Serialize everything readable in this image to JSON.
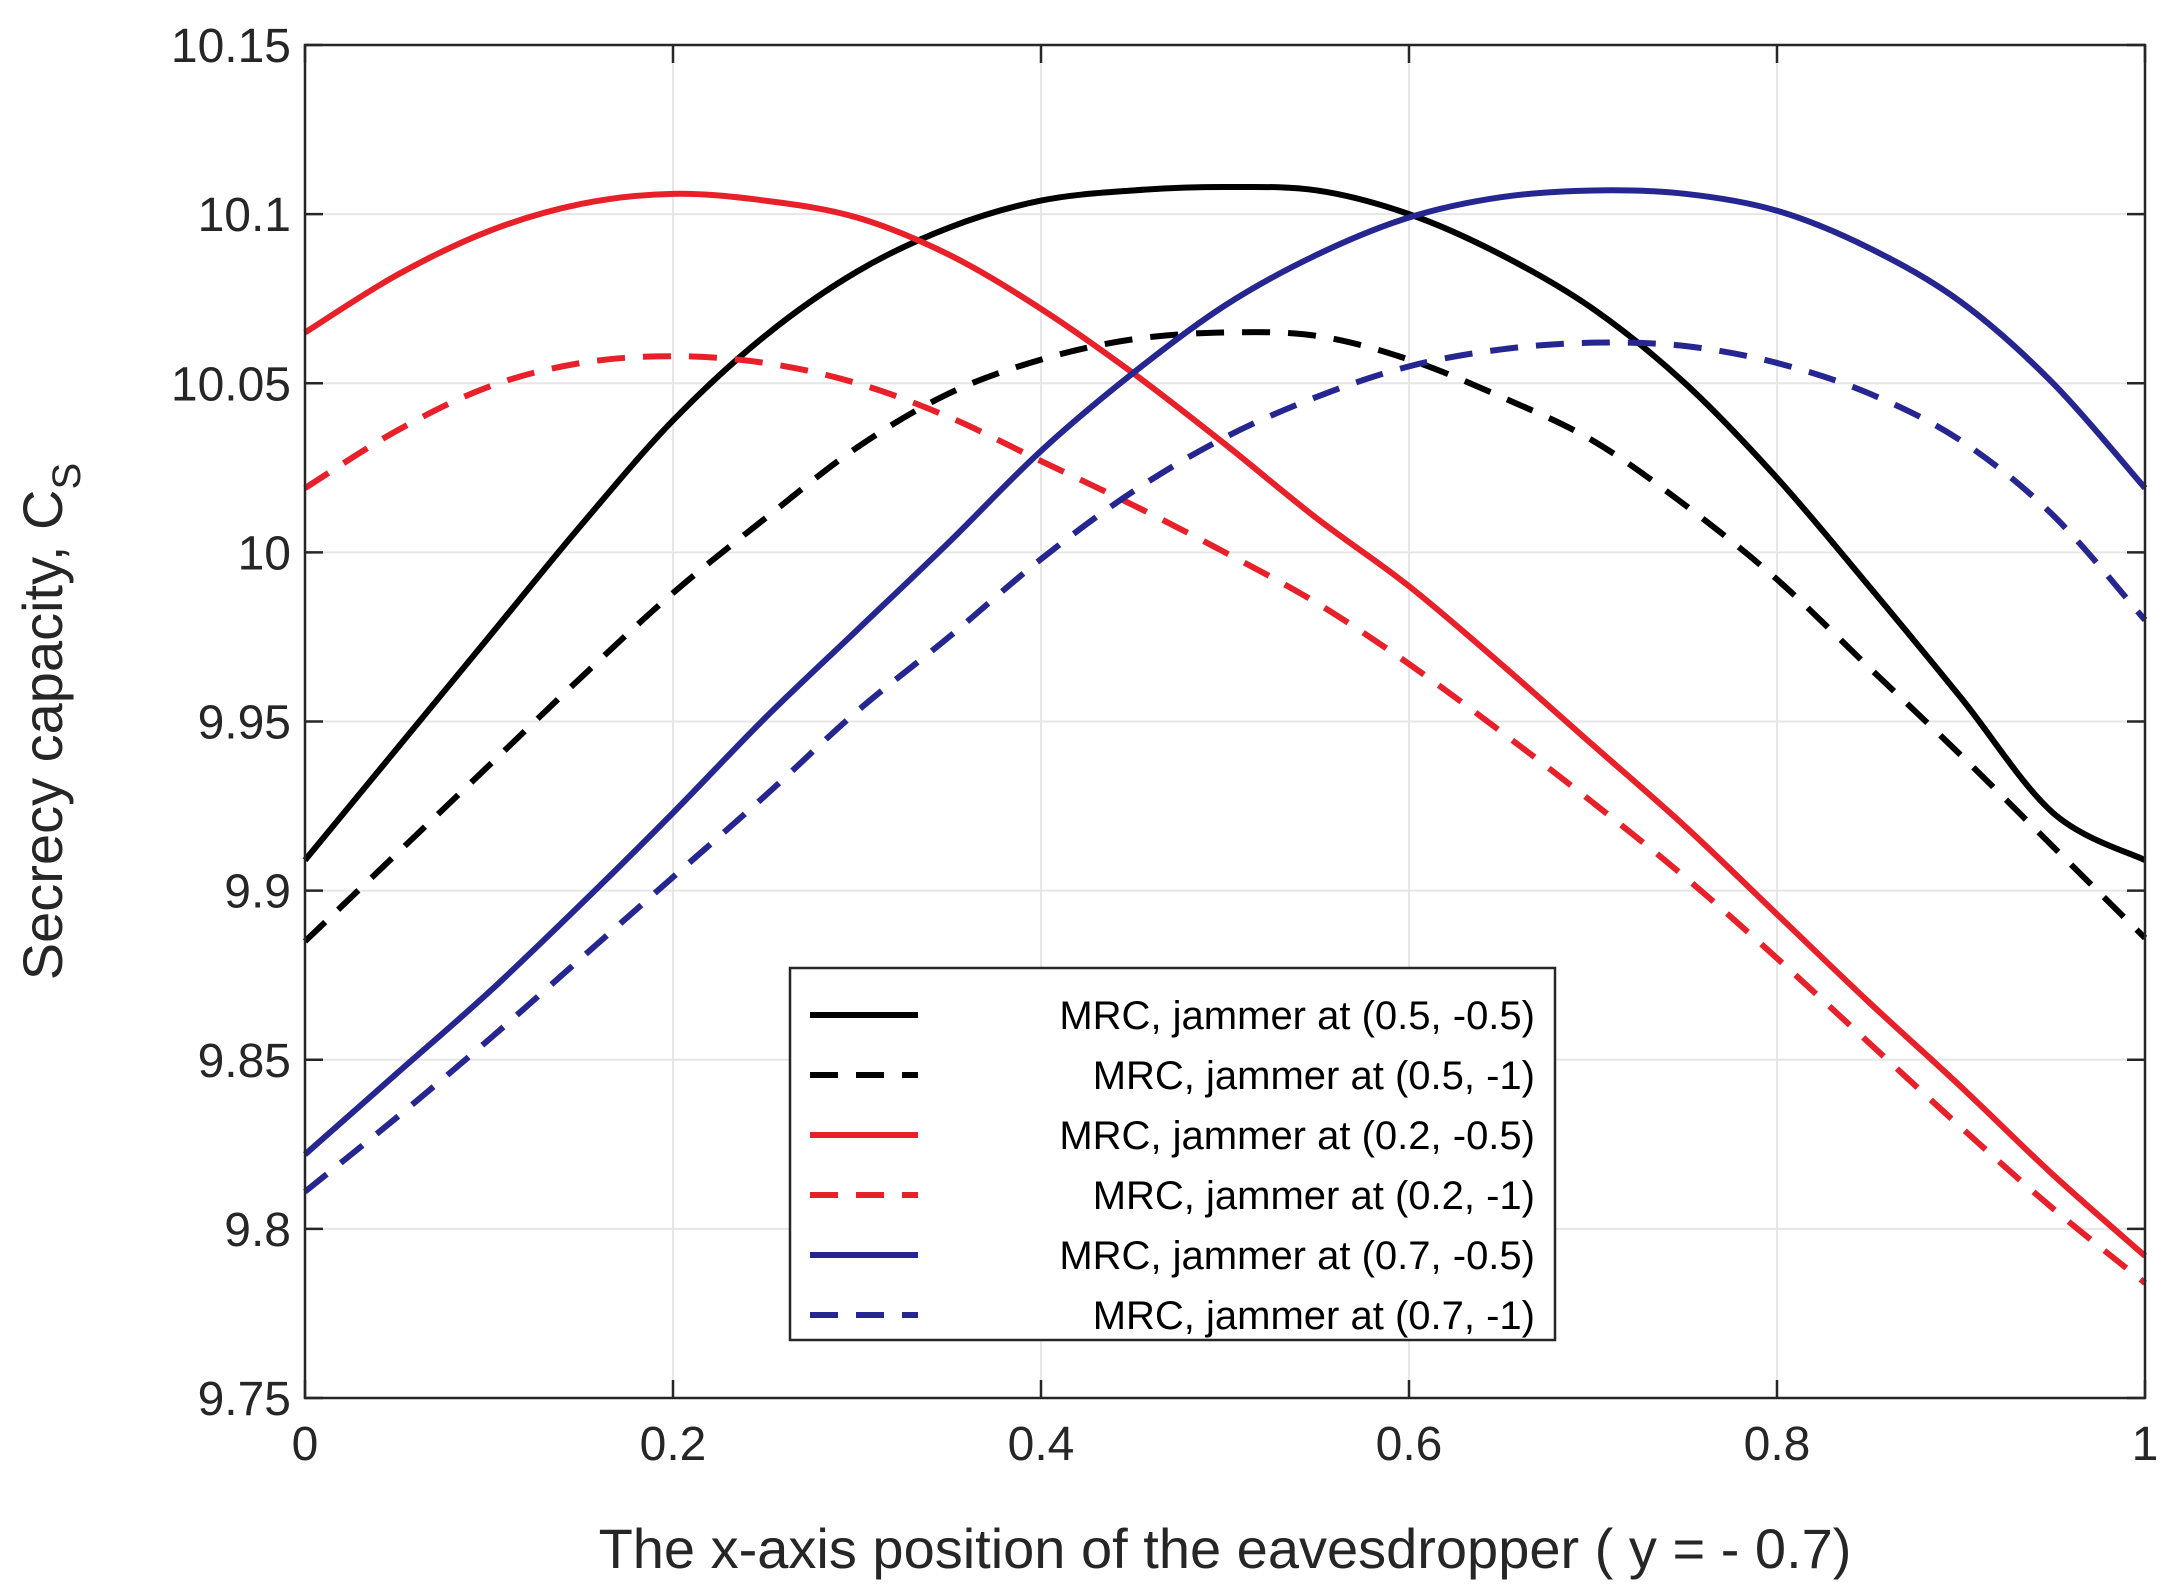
{
  "chart_data": {
    "type": "line",
    "title": "",
    "xlabel": "The x-axis position of the eavesdropper ( y = - 0.7)",
    "ylabel_main": "Secrecy capacity, C",
    "ylabel_sub": "S",
    "xlim": [
      0,
      1
    ],
    "ylim": [
      9.75,
      10.15
    ],
    "grid": true,
    "legend_position": "bottom-center",
    "x_ticks": [
      0,
      0.2,
      0.4,
      0.6,
      0.8,
      1
    ],
    "x_tick_labels": [
      "0",
      "0.2",
      "0.4",
      "0.6",
      "0.8",
      "1"
    ],
    "y_ticks": [
      9.75,
      9.8,
      9.85,
      9.9,
      9.95,
      10,
      10.05,
      10.1,
      10.15
    ],
    "y_tick_labels": [
      "9.75",
      "9.8",
      "9.85",
      "9.9",
      "9.95",
      "10",
      "10.05",
      "10.1",
      "10.15"
    ],
    "x": [
      0,
      0.05,
      0.1,
      0.15,
      0.2,
      0.25,
      0.3,
      0.35,
      0.4,
      0.45,
      0.5,
      0.55,
      0.6,
      0.65,
      0.7,
      0.75,
      0.8,
      0.85,
      0.9,
      0.95,
      1
    ],
    "series": [
      {
        "name": "MRC, jammer at (0.5, -0.5)",
        "color": "#000000",
        "dash": "solid",
        "values": [
          9.909,
          9.942,
          9.975,
          10.008,
          10.039,
          10.064,
          10.083,
          10.096,
          10.104,
          10.107,
          10.108,
          10.107,
          10.1,
          10.088,
          10.072,
          10.05,
          10.022,
          9.99,
          9.957,
          9.923,
          9.909
        ]
      },
      {
        "name": "MRC, jammer at (0.5, -1)",
        "color": "#000000",
        "dash": "dashed",
        "values": [
          9.885,
          9.911,
          9.937,
          9.963,
          9.988,
          10.01,
          10.031,
          10.047,
          10.057,
          10.063,
          10.065,
          10.064,
          10.057,
          10.046,
          10.033,
          10.014,
          9.992,
          9.966,
          9.94,
          9.913,
          9.886
        ]
      },
      {
        "name": "MRC, jammer at (0.2, -0.5)",
        "color": "#e8202a",
        "dash": "solid",
        "values": [
          10.065,
          10.082,
          10.095,
          10.103,
          10.106,
          10.104,
          10.099,
          10.088,
          10.072,
          10.053,
          10.032,
          10.01,
          9.99,
          9.967,
          9.943,
          9.919,
          9.893,
          9.867,
          9.842,
          9.816,
          9.792
        ]
      },
      {
        "name": "MRC, jammer at (0.2, -1)",
        "color": "#e8202a",
        "dash": "dashed",
        "values": [
          10.019,
          10.036,
          10.049,
          10.056,
          10.058,
          10.056,
          10.05,
          10.04,
          10.027,
          10.014,
          10.0,
          9.985,
          9.967,
          9.947,
          9.926,
          9.904,
          9.88,
          9.855,
          9.83,
          9.806,
          9.784
        ]
      },
      {
        "name": "MRC, jammer at (0.7, -0.5)",
        "color": "#262691",
        "dash": "solid",
        "values": [
          9.822,
          9.846,
          9.87,
          9.896,
          9.923,
          9.951,
          9.977,
          10.003,
          10.03,
          10.053,
          10.073,
          10.088,
          10.099,
          10.105,
          10.107,
          10.106,
          10.101,
          10.09,
          10.074,
          10.05,
          10.019
        ]
      },
      {
        "name": "MRC, jammer at (0.7, -1)",
        "color": "#262691",
        "dash": "dashed",
        "values": [
          9.811,
          9.833,
          9.856,
          9.88,
          9.904,
          9.928,
          9.953,
          9.975,
          9.998,
          10.018,
          10.034,
          10.046,
          10.055,
          10.06,
          10.062,
          10.061,
          10.056,
          10.047,
          10.033,
          10.011,
          9.98
        ]
      }
    ]
  }
}
